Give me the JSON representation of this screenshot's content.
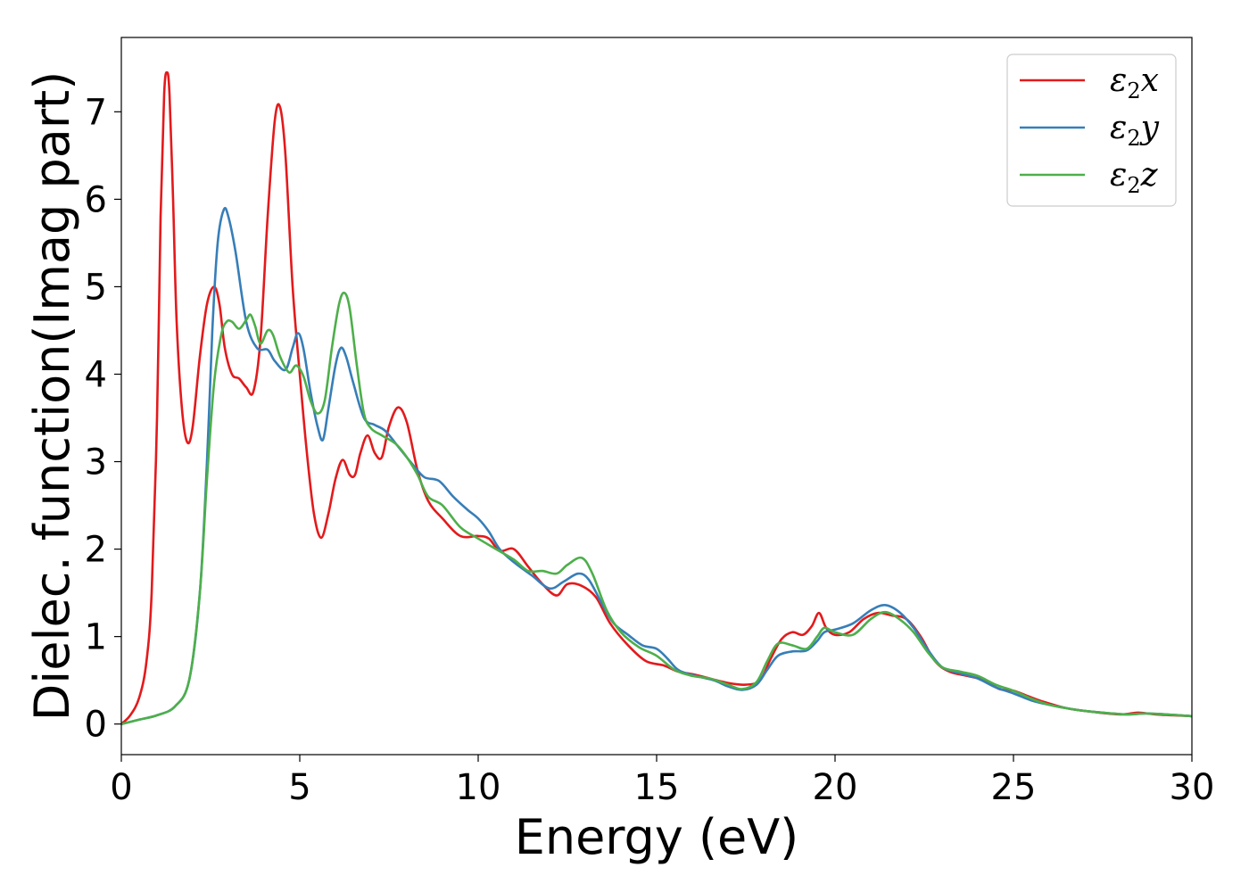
{
  "chart_data": {
    "type": "line",
    "xlabel": "Energy (eV)",
    "ylabel": "Dielec. function(Imag part)",
    "xlim": [
      0,
      30
    ],
    "ylim": [
      -0.35,
      7.85
    ],
    "xticks": [
      0,
      5,
      10,
      15,
      20,
      25,
      30
    ],
    "yticks": [
      0,
      1,
      2,
      3,
      4,
      5,
      6,
      7
    ],
    "grid": false,
    "legend": "top-right",
    "series": [
      {
        "name": "ε₂x",
        "legend_base": "ε",
        "legend_sub": "2",
        "legend_suffix": "x",
        "color": "#e31a1c",
        "points": [
          [
            0,
            0
          ],
          [
            0.25,
            0.1
          ],
          [
            0.5,
            0.3
          ],
          [
            0.7,
            0.7
          ],
          [
            0.85,
            1.5
          ],
          [
            1.0,
            3.5
          ],
          [
            1.1,
            5.8
          ],
          [
            1.2,
            7.2
          ],
          [
            1.28,
            7.45
          ],
          [
            1.35,
            7.2
          ],
          [
            1.45,
            6.0
          ],
          [
            1.55,
            4.6
          ],
          [
            1.7,
            3.6
          ],
          [
            1.85,
            3.22
          ],
          [
            2.0,
            3.4
          ],
          [
            2.2,
            4.2
          ],
          [
            2.4,
            4.8
          ],
          [
            2.6,
            5.0
          ],
          [
            2.75,
            4.8
          ],
          [
            2.9,
            4.3
          ],
          [
            3.1,
            4.0
          ],
          [
            3.3,
            3.95
          ],
          [
            3.5,
            3.85
          ],
          [
            3.7,
            3.8
          ],
          [
            3.9,
            4.4
          ],
          [
            4.1,
            5.8
          ],
          [
            4.3,
            6.9
          ],
          [
            4.45,
            7.05
          ],
          [
            4.6,
            6.5
          ],
          [
            4.8,
            5.0
          ],
          [
            5.0,
            4.0
          ],
          [
            5.2,
            3.1
          ],
          [
            5.4,
            2.4
          ],
          [
            5.6,
            2.13
          ],
          [
            5.8,
            2.4
          ],
          [
            6.0,
            2.8
          ],
          [
            6.2,
            3.02
          ],
          [
            6.4,
            2.85
          ],
          [
            6.55,
            2.85
          ],
          [
            6.7,
            3.1
          ],
          [
            6.9,
            3.3
          ],
          [
            7.1,
            3.1
          ],
          [
            7.3,
            3.05
          ],
          [
            7.5,
            3.4
          ],
          [
            7.75,
            3.62
          ],
          [
            8.0,
            3.45
          ],
          [
            8.3,
            2.9
          ],
          [
            8.6,
            2.55
          ],
          [
            9.0,
            2.35
          ],
          [
            9.5,
            2.15
          ],
          [
            10.0,
            2.15
          ],
          [
            10.3,
            2.12
          ],
          [
            10.6,
            1.98
          ],
          [
            11.0,
            2.0
          ],
          [
            11.4,
            1.8
          ],
          [
            11.8,
            1.6
          ],
          [
            12.2,
            1.47
          ],
          [
            12.5,
            1.6
          ],
          [
            12.9,
            1.58
          ],
          [
            13.3,
            1.45
          ],
          [
            13.7,
            1.15
          ],
          [
            14.2,
            0.9
          ],
          [
            14.7,
            0.72
          ],
          [
            15.2,
            0.67
          ],
          [
            15.6,
            0.6
          ],
          [
            16.0,
            0.57
          ],
          [
            16.5,
            0.52
          ],
          [
            17.0,
            0.47
          ],
          [
            17.5,
            0.45
          ],
          [
            17.9,
            0.5
          ],
          [
            18.2,
            0.75
          ],
          [
            18.5,
            0.97
          ],
          [
            18.8,
            1.05
          ],
          [
            19.1,
            1.02
          ],
          [
            19.35,
            1.12
          ],
          [
            19.55,
            1.27
          ],
          [
            19.75,
            1.1
          ],
          [
            20.0,
            1.02
          ],
          [
            20.4,
            1.05
          ],
          [
            20.8,
            1.2
          ],
          [
            21.2,
            1.27
          ],
          [
            21.6,
            1.24
          ],
          [
            22.0,
            1.2
          ],
          [
            22.4,
            1.0
          ],
          [
            22.8,
            0.72
          ],
          [
            23.2,
            0.6
          ],
          [
            23.7,
            0.55
          ],
          [
            24.2,
            0.5
          ],
          [
            24.6,
            0.4
          ],
          [
            25.0,
            0.38
          ],
          [
            25.4,
            0.32
          ],
          [
            25.8,
            0.26
          ],
          [
            26.5,
            0.18
          ],
          [
            27.2,
            0.14
          ],
          [
            28.0,
            0.11
          ],
          [
            28.5,
            0.13
          ],
          [
            29.0,
            0.11
          ],
          [
            30.0,
            0.09
          ]
        ]
      },
      {
        "name": "ε₂y",
        "legend_base": "ε",
        "legend_sub": "2",
        "legend_suffix": "y",
        "color": "#377eb8",
        "points": [
          [
            0,
            0
          ],
          [
            0.5,
            0.05
          ],
          [
            1.0,
            0.1
          ],
          [
            1.5,
            0.2
          ],
          [
            1.9,
            0.5
          ],
          [
            2.2,
            1.5
          ],
          [
            2.4,
            3.0
          ],
          [
            2.55,
            4.5
          ],
          [
            2.7,
            5.5
          ],
          [
            2.87,
            5.88
          ],
          [
            3.0,
            5.8
          ],
          [
            3.2,
            5.4
          ],
          [
            3.5,
            4.6
          ],
          [
            3.8,
            4.3
          ],
          [
            4.1,
            4.28
          ],
          [
            4.3,
            4.15
          ],
          [
            4.6,
            4.05
          ],
          [
            4.8,
            4.3
          ],
          [
            4.95,
            4.47
          ],
          [
            5.1,
            4.3
          ],
          [
            5.3,
            3.8
          ],
          [
            5.5,
            3.4
          ],
          [
            5.65,
            3.25
          ],
          [
            5.8,
            3.6
          ],
          [
            6.0,
            4.1
          ],
          [
            6.15,
            4.3
          ],
          [
            6.3,
            4.2
          ],
          [
            6.5,
            3.9
          ],
          [
            6.8,
            3.5
          ],
          [
            7.1,
            3.42
          ],
          [
            7.4,
            3.35
          ],
          [
            7.8,
            3.15
          ],
          [
            8.2,
            2.95
          ],
          [
            8.5,
            2.82
          ],
          [
            8.9,
            2.78
          ],
          [
            9.3,
            2.6
          ],
          [
            9.7,
            2.45
          ],
          [
            10.0,
            2.35
          ],
          [
            10.3,
            2.2
          ],
          [
            10.6,
            2.0
          ],
          [
            11.0,
            1.85
          ],
          [
            11.5,
            1.7
          ],
          [
            12.0,
            1.55
          ],
          [
            12.4,
            1.63
          ],
          [
            12.8,
            1.72
          ],
          [
            13.1,
            1.65
          ],
          [
            13.5,
            1.35
          ],
          [
            13.8,
            1.15
          ],
          [
            14.2,
            1.02
          ],
          [
            14.6,
            0.9
          ],
          [
            15.0,
            0.86
          ],
          [
            15.3,
            0.75
          ],
          [
            15.6,
            0.62
          ],
          [
            16.0,
            0.56
          ],
          [
            16.6,
            0.5
          ],
          [
            17.0,
            0.43
          ],
          [
            17.4,
            0.39
          ],
          [
            17.8,
            0.45
          ],
          [
            18.1,
            0.62
          ],
          [
            18.4,
            0.78
          ],
          [
            18.8,
            0.83
          ],
          [
            19.2,
            0.84
          ],
          [
            19.5,
            0.95
          ],
          [
            19.7,
            1.05
          ],
          [
            20.0,
            1.08
          ],
          [
            20.5,
            1.15
          ],
          [
            21.0,
            1.3
          ],
          [
            21.4,
            1.36
          ],
          [
            21.8,
            1.28
          ],
          [
            22.2,
            1.1
          ],
          [
            22.6,
            0.85
          ],
          [
            23.0,
            0.65
          ],
          [
            23.5,
            0.58
          ],
          [
            24.0,
            0.52
          ],
          [
            24.5,
            0.42
          ],
          [
            25.0,
            0.35
          ],
          [
            25.5,
            0.27
          ],
          [
            26.0,
            0.22
          ],
          [
            26.8,
            0.16
          ],
          [
            27.5,
            0.13
          ],
          [
            28.2,
            0.11
          ],
          [
            28.8,
            0.12
          ],
          [
            30.0,
            0.09
          ]
        ]
      },
      {
        "name": "ε₂z",
        "legend_base": "ε",
        "legend_sub": "2",
        "legend_suffix": "z",
        "color": "#4daf4a",
        "points": [
          [
            0,
            0
          ],
          [
            0.5,
            0.05
          ],
          [
            1.0,
            0.1
          ],
          [
            1.5,
            0.2
          ],
          [
            1.9,
            0.5
          ],
          [
            2.2,
            1.5
          ],
          [
            2.4,
            2.8
          ],
          [
            2.6,
            3.9
          ],
          [
            2.8,
            4.45
          ],
          [
            2.95,
            4.6
          ],
          [
            3.1,
            4.6
          ],
          [
            3.3,
            4.52
          ],
          [
            3.5,
            4.62
          ],
          [
            3.62,
            4.68
          ],
          [
            3.75,
            4.55
          ],
          [
            3.9,
            4.35
          ],
          [
            4.1,
            4.5
          ],
          [
            4.25,
            4.45
          ],
          [
            4.45,
            4.2
          ],
          [
            4.7,
            4.02
          ],
          [
            4.9,
            4.1
          ],
          [
            5.1,
            3.98
          ],
          [
            5.3,
            3.7
          ],
          [
            5.5,
            3.55
          ],
          [
            5.7,
            3.7
          ],
          [
            5.9,
            4.3
          ],
          [
            6.1,
            4.8
          ],
          [
            6.25,
            4.93
          ],
          [
            6.4,
            4.75
          ],
          [
            6.6,
            4.1
          ],
          [
            6.8,
            3.55
          ],
          [
            7.0,
            3.38
          ],
          [
            7.3,
            3.3
          ],
          [
            7.7,
            3.2
          ],
          [
            8.0,
            3.05
          ],
          [
            8.3,
            2.85
          ],
          [
            8.6,
            2.6
          ],
          [
            9.0,
            2.5
          ],
          [
            9.5,
            2.25
          ],
          [
            10.0,
            2.12
          ],
          [
            10.5,
            2.0
          ],
          [
            11.0,
            1.88
          ],
          [
            11.4,
            1.75
          ],
          [
            11.8,
            1.75
          ],
          [
            12.2,
            1.72
          ],
          [
            12.5,
            1.82
          ],
          [
            12.9,
            1.9
          ],
          [
            13.2,
            1.72
          ],
          [
            13.6,
            1.3
          ],
          [
            14.0,
            1.05
          ],
          [
            14.5,
            0.88
          ],
          [
            15.0,
            0.78
          ],
          [
            15.5,
            0.62
          ],
          [
            16.0,
            0.55
          ],
          [
            16.5,
            0.52
          ],
          [
            17.0,
            0.45
          ],
          [
            17.4,
            0.4
          ],
          [
            17.8,
            0.48
          ],
          [
            18.1,
            0.72
          ],
          [
            18.4,
            0.92
          ],
          [
            18.8,
            0.9
          ],
          [
            19.2,
            0.86
          ],
          [
            19.5,
            1.0
          ],
          [
            19.7,
            1.1
          ],
          [
            20.0,
            1.05
          ],
          [
            20.5,
            1.02
          ],
          [
            21.0,
            1.2
          ],
          [
            21.4,
            1.28
          ],
          [
            21.8,
            1.2
          ],
          [
            22.2,
            1.05
          ],
          [
            22.6,
            0.82
          ],
          [
            23.0,
            0.65
          ],
          [
            23.5,
            0.6
          ],
          [
            24.0,
            0.55
          ],
          [
            24.5,
            0.45
          ],
          [
            25.0,
            0.38
          ],
          [
            25.5,
            0.29
          ],
          [
            26.0,
            0.22
          ],
          [
            26.8,
            0.16
          ],
          [
            27.5,
            0.13
          ],
          [
            28.2,
            0.11
          ],
          [
            28.8,
            0.12
          ],
          [
            30.0,
            0.09
          ]
        ]
      }
    ]
  }
}
